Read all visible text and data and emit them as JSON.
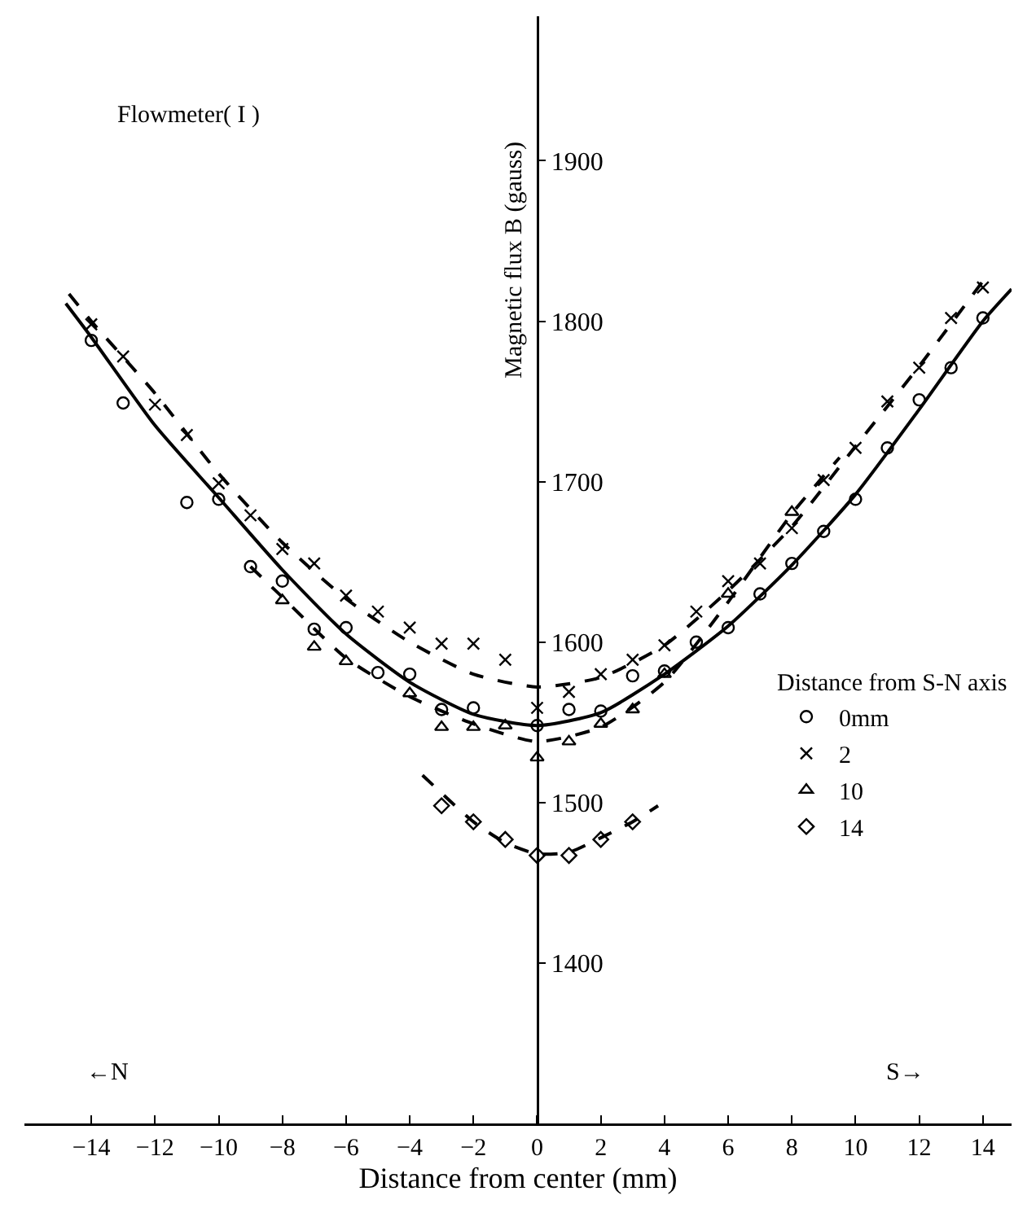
{
  "chart_data": {
    "type": "scatter",
    "xlabel": "Distance from center (mm)",
    "ylabel": "Magnetic flux B (gauss)",
    "legend_title": "Distance from S-N axis",
    "legend": "right",
    "grid": false,
    "xlim": [
      -16.1,
      14.9
    ],
    "xticks": [
      -14,
      -12,
      -10,
      -8,
      -6,
      -4,
      -2,
      0,
      2,
      4,
      6,
      8,
      10,
      12,
      14
    ],
    "ylim": [
      1300,
      1990
    ],
    "yticks": [
      1400,
      1500,
      1600,
      1700,
      1800,
      1900
    ],
    "annotations": [
      "Flowmeter( I )",
      "←N",
      "S→"
    ],
    "series": [
      {
        "name": "0mm",
        "marker": "circle",
        "color": "#000000",
        "x": [
          -14,
          -13,
          -11,
          -10,
          -9,
          -8,
          -7,
          -6,
          -5,
          -4,
          -3,
          -2,
          0,
          1,
          2,
          3,
          4,
          5,
          6,
          7,
          8,
          9,
          10,
          11,
          12,
          13,
          14
        ],
        "values": [
          1788,
          1749,
          1687,
          1689,
          1647,
          1638,
          1608,
          1609,
          1581,
          1580,
          1558,
          1559,
          1548,
          1558,
          1557,
          1579,
          1582,
          1600,
          1609,
          1630,
          1649,
          1669,
          1689,
          1721,
          1751,
          1771,
          1802
        ]
      },
      {
        "name": "2",
        "marker": "cross",
        "color": "#000000",
        "x": [
          -14,
          -13,
          -12,
          -11,
          -10,
          -9,
          -8,
          -7,
          -6,
          -5,
          -4,
          -3,
          -2,
          -1,
          0,
          1,
          2,
          3,
          4,
          5,
          6,
          7,
          8,
          9,
          10,
          11,
          12,
          13,
          14
        ],
        "values": [
          1798,
          1778,
          1748,
          1729,
          1699,
          1679,
          1658,
          1649,
          1629,
          1619,
          1609,
          1599,
          1599,
          1589,
          1559,
          1569,
          1580,
          1589,
          1598,
          1619,
          1638,
          1649,
          1671,
          1701,
          1721,
          1750,
          1771,
          1802,
          1821
        ]
      },
      {
        "name": "10",
        "marker": "triangle",
        "color": "#000000",
        "x": [
          -8,
          -7,
          -6,
          -4,
          -3,
          -2,
          -1,
          0,
          1,
          2,
          3,
          4,
          6,
          7,
          8
        ],
        "values": [
          1626,
          1597,
          1588,
          1568,
          1547,
          1547,
          1548,
          1528,
          1538,
          1549,
          1558,
          1580,
          1630,
          null,
          1681
        ]
      },
      {
        "name": "14",
        "marker": "diamond",
        "color": "#000000",
        "x": [
          -3,
          -2,
          -1,
          0,
          1,
          2,
          3
        ],
        "values": [
          1498,
          1488,
          1477,
          1467,
          1467,
          1477,
          1488
        ]
      },
      {
        "type": "line",
        "line_style": "dashed",
        "color": "#000000",
        "x": [
          -14.7,
          -14,
          -12,
          -10,
          -8,
          -6,
          -4,
          -2,
          0,
          2,
          4,
          6,
          8,
          10,
          12,
          14
        ],
        "values": [
          1817,
          1800,
          1755,
          1705,
          1662,
          1627,
          1600,
          1580,
          1572,
          1578,
          1598,
          1632,
          1672,
          1722,
          1772,
          1825
        ]
      },
      {
        "type": "line",
        "line_style": "solid",
        "color": "#000000",
        "x": [
          -14.8,
          -14,
          -12,
          -10,
          -8,
          -6,
          -4,
          -2,
          0,
          2,
          4,
          6,
          8,
          10,
          12,
          14,
          14.9
        ],
        "values": [
          1811,
          1790,
          1735,
          1690,
          1645,
          1605,
          1575,
          1555,
          1548,
          1556,
          1580,
          1610,
          1648,
          1692,
          1745,
          1800,
          1820
        ]
      },
      {
        "type": "line",
        "line_style": "dashed",
        "color": "#000000",
        "x": [
          -9,
          -8,
          -6,
          -4,
          -2,
          0,
          2,
          4,
          6,
          8,
          9.5
        ],
        "values": [
          1647,
          1628,
          1590,
          1566,
          1549,
          1538,
          1547,
          1575,
          1625,
          1680,
          1715
        ]
      },
      {
        "type": "line",
        "line_style": "dashed",
        "color": "#000000",
        "x": [
          -3.6,
          -2,
          -1,
          0,
          1,
          2,
          3,
          3.8
        ],
        "values": [
          1517,
          1488,
          1475,
          1468,
          1469,
          1478,
          1488,
          1498
        ]
      }
    ]
  }
}
